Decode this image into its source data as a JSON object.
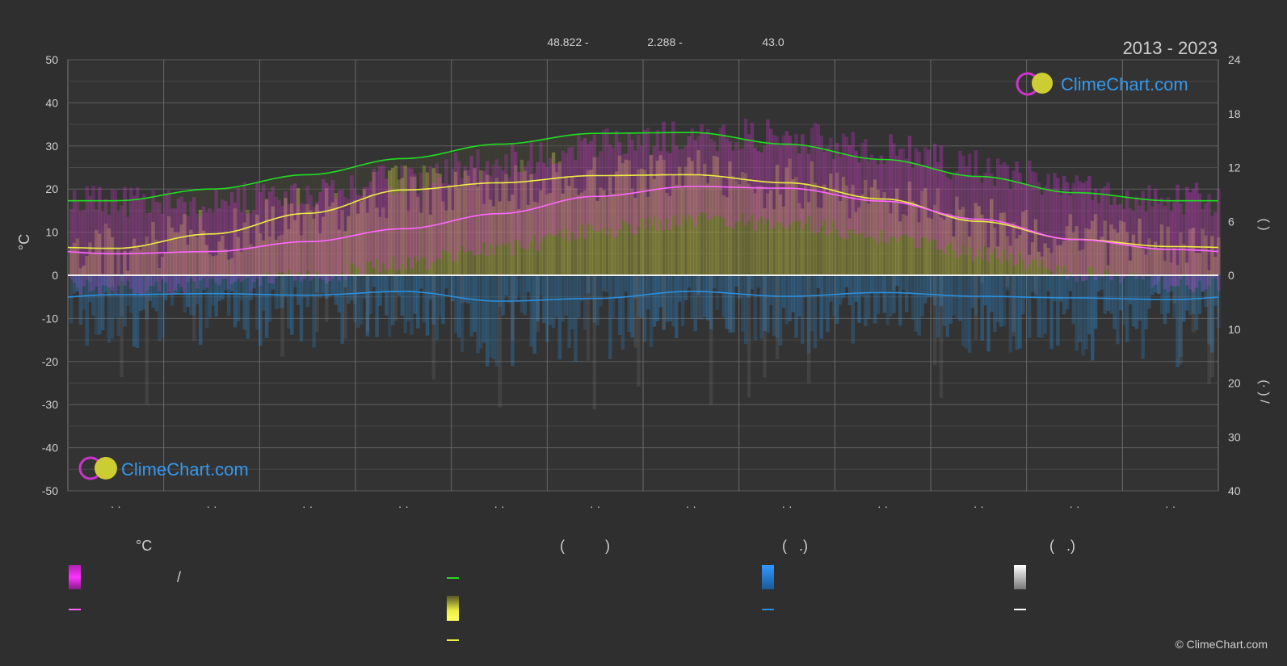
{
  "header": {
    "coords": [
      "48.822 -",
      "2.288 -",
      "43.0"
    ],
    "period": "2013 - 2023"
  },
  "watermark": {
    "brand": "ClimeChart.com",
    "copyright": "© ClimeChart.com"
  },
  "legend": {
    "temp_header": "°C",
    "col2_header": "(          )",
    "col3_header": "(   .)",
    "col4_header": "(   .)",
    "temp_range_sep": "/"
  },
  "colors": {
    "background": "#2f2f2f",
    "grid": "#5a5a5a",
    "daylight": "#22dd22",
    "sunshine": "#eeee44",
    "temp_mean": "#ff66ff",
    "temp_band": "#dd33dd",
    "precip": "#2a8fdd",
    "snow": "#ffffff"
  },
  "chart_data": {
    "type": "line",
    "categories": [
      "· ·",
      "· ·",
      "· ·",
      "· ·",
      "· ·",
      "· ·",
      "· ·",
      "· ·",
      "· ·",
      "· ·",
      "· ·",
      "· ·"
    ],
    "x": [
      0,
      1,
      2,
      3,
      4,
      5,
      6,
      7,
      8,
      9,
      10,
      11
    ],
    "left_axis": {
      "label": "°C",
      "ylim": [
        -50,
        50
      ],
      "ticks": [
        50,
        40,
        30,
        20,
        10,
        0,
        -10,
        -20,
        -30,
        -40,
        -50
      ]
    },
    "right_axis_upper": {
      "label": "(   )",
      "ylim": [
        0,
        24
      ],
      "ticks": [
        24,
        18,
        12,
        6,
        0
      ]
    },
    "right_axis_lower": {
      "label": "(·   )  /",
      "ylim": [
        0,
        40
      ],
      "ticks": [
        0,
        10,
        20,
        30,
        40
      ]
    },
    "grid": true,
    "series": [
      {
        "axis": "hours",
        "values": [
          8.3,
          9.6,
          11.2,
          13.0,
          14.6,
          15.8,
          15.9,
          14.6,
          12.9,
          11.0,
          9.2,
          8.3
        ]
      },
      {
        "axis": "hours",
        "values": [
          3.0,
          4.6,
          6.9,
          9.5,
          10.3,
          11.1,
          11.2,
          10.3,
          8.5,
          6.0,
          4.0,
          3.2
        ]
      },
      {
        "axis": "temp",
        "values": [
          5.0,
          5.5,
          7.8,
          10.8,
          14.3,
          18.3,
          20.6,
          20.2,
          17.2,
          13.0,
          8.3,
          6.0
        ]
      },
      {
        "axis": "precip",
        "values": [
          3.6,
          3.4,
          3.7,
          3.0,
          4.8,
          4.3,
          3.0,
          3.9,
          3.2,
          3.9,
          4.2,
          4.5
        ]
      }
    ]
  }
}
